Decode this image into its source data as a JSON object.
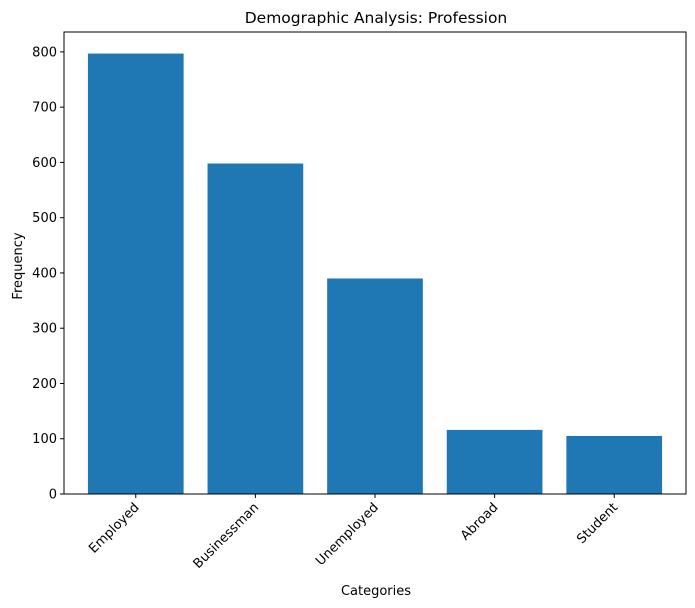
{
  "chart_data": {
    "type": "bar",
    "title": "Demographic Analysis: Profession",
    "xlabel": "Categories",
    "ylabel": "Frequency",
    "categories": [
      "Employed",
      "Businessman",
      "Unemployed",
      "Abroad",
      "Student"
    ],
    "values": [
      797,
      598,
      390,
      116,
      105
    ],
    "ylim": [
      0,
      836
    ],
    "yticks": [
      0,
      100,
      200,
      300,
      400,
      500,
      600,
      700,
      800
    ],
    "xtick_rotation": 45,
    "grid": false,
    "bar_color": "#1f77b4"
  }
}
